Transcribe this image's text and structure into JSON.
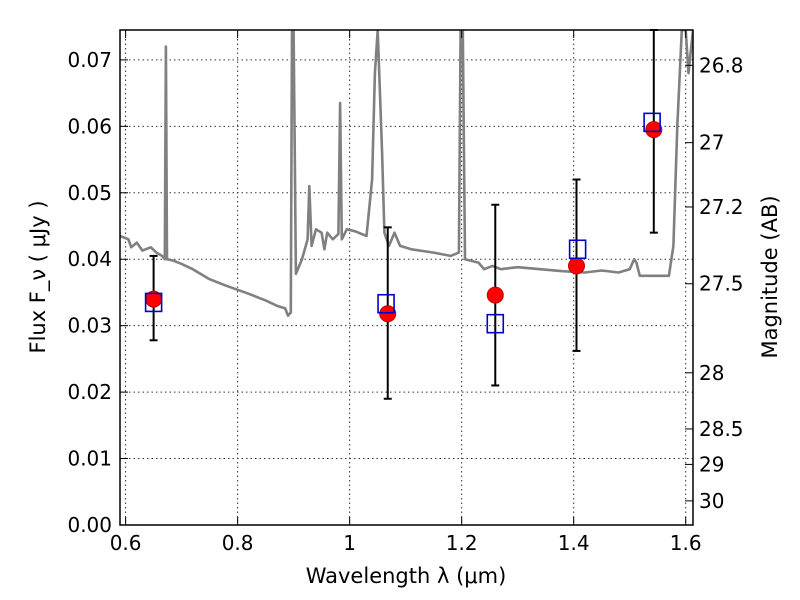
{
  "chart_data": {
    "type": "scatter",
    "xlabel": "Wavelength  λ (μm)",
    "ylabel": "Flux  F_ν  ( μJy )",
    "ylabel_right": "Magnitude (AB)",
    "xlim": [
      0.59,
      1.613
    ],
    "ylim": [
      0.0,
      0.0745
    ],
    "grid": true,
    "x_ticks": [
      0.6,
      0.8,
      1.0,
      1.2,
      1.4,
      1.6
    ],
    "x_tick_labels": [
      "0.6",
      "0.8",
      "1",
      "1.2",
      "1.4",
      "1.6"
    ],
    "y_ticks": [
      0.0,
      0.01,
      0.02,
      0.03,
      0.04,
      0.05,
      0.06,
      0.07
    ],
    "y_tick_labels": [
      "0.00",
      "0.01",
      "0.02",
      "0.03",
      "0.04",
      "0.05",
      "0.06",
      "0.07"
    ],
    "mag_ticks": [
      26.8,
      27,
      27.2,
      27.5,
      28,
      28.5,
      29,
      30
    ],
    "mag_tick_labels": [
      "26.8",
      "27",
      "27.2",
      "27.5",
      "28",
      "28.5",
      "29",
      "30"
    ],
    "colors": {
      "model": "#808080",
      "observed": "#ff0000",
      "observed_edge": "#c00000",
      "synthetic": "#0000cc",
      "errorbar": "#000000",
      "grid": "#333333"
    },
    "series": [
      {
        "name": "observed",
        "marker": "filled-circle",
        "points": [
          {
            "x": 0.65,
            "y": 0.034,
            "ylow": 0.0278,
            "yhigh": 0.0405
          },
          {
            "x": 1.068,
            "y": 0.0318,
            "ylow": 0.019,
            "yhigh": 0.0448
          },
          {
            "x": 1.26,
            "y": 0.0346,
            "ylow": 0.021,
            "yhigh": 0.0482
          },
          {
            "x": 1.405,
            "y": 0.039,
            "ylow": 0.0262,
            "yhigh": 0.052
          },
          {
            "x": 1.543,
            "y": 0.0595,
            "ylow": 0.044,
            "yhigh": 0.0745
          }
        ]
      },
      {
        "name": "model-synthetic",
        "marker": "open-square",
        "points": [
          {
            "x": 0.65,
            "y": 0.0335
          },
          {
            "x": 1.065,
            "y": 0.0333
          },
          {
            "x": 1.26,
            "y": 0.0303
          },
          {
            "x": 1.407,
            "y": 0.0415
          },
          {
            "x": 1.54,
            "y": 0.0606
          }
        ]
      },
      {
        "name": "model-spectrum",
        "type": "line",
        "points": [
          [
            0.59,
            0.0435
          ],
          [
            0.605,
            0.043
          ],
          [
            0.61,
            0.0418
          ],
          [
            0.62,
            0.0425
          ],
          [
            0.63,
            0.0413
          ],
          [
            0.645,
            0.0418
          ],
          [
            0.655,
            0.041
          ],
          [
            0.665,
            0.0405
          ],
          [
            0.67,
            0.04
          ],
          [
            0.672,
            0.072
          ],
          [
            0.674,
            0.04
          ],
          [
            0.685,
            0.0398
          ],
          [
            0.7,
            0.0393
          ],
          [
            0.72,
            0.0385
          ],
          [
            0.75,
            0.037
          ],
          [
            0.78,
            0.036
          ],
          [
            0.82,
            0.0348
          ],
          [
            0.85,
            0.0338
          ],
          [
            0.87,
            0.033
          ],
          [
            0.885,
            0.0326
          ],
          [
            0.89,
            0.0315
          ],
          [
            0.895,
            0.032
          ],
          [
            0.897,
            0.0745
          ],
          [
            0.9,
            0.0745
          ],
          [
            0.904,
            0.0378
          ],
          [
            0.915,
            0.04
          ],
          [
            0.925,
            0.043
          ],
          [
            0.928,
            0.051
          ],
          [
            0.932,
            0.042
          ],
          [
            0.94,
            0.0445
          ],
          [
            0.95,
            0.044
          ],
          [
            0.955,
            0.0415
          ],
          [
            0.96,
            0.044
          ],
          [
            0.97,
            0.043
          ],
          [
            0.98,
            0.0438
          ],
          [
            0.983,
            0.0635
          ],
          [
            0.986,
            0.043
          ],
          [
            0.995,
            0.0445
          ],
          [
            1.01,
            0.0442
          ],
          [
            1.03,
            0.0435
          ],
          [
            1.04,
            0.052
          ],
          [
            1.045,
            0.068
          ],
          [
            1.05,
            0.0745
          ],
          [
            1.058,
            0.056
          ],
          [
            1.062,
            0.044
          ],
          [
            1.07,
            0.042
          ],
          [
            1.08,
            0.044
          ],
          [
            1.09,
            0.042
          ],
          [
            1.11,
            0.0415
          ],
          [
            1.15,
            0.041
          ],
          [
            1.18,
            0.0405
          ],
          [
            1.195,
            0.041
          ],
          [
            1.198,
            0.0745
          ],
          [
            1.202,
            0.0745
          ],
          [
            1.206,
            0.04
          ],
          [
            1.23,
            0.0395
          ],
          [
            1.24,
            0.0385
          ],
          [
            1.255,
            0.039
          ],
          [
            1.27,
            0.0385
          ],
          [
            1.3,
            0.0388
          ],
          [
            1.34,
            0.0385
          ],
          [
            1.38,
            0.0382
          ],
          [
            1.42,
            0.038
          ],
          [
            1.45,
            0.0383
          ],
          [
            1.48,
            0.038
          ],
          [
            1.5,
            0.0385
          ],
          [
            1.508,
            0.04
          ],
          [
            1.512,
            0.0395
          ],
          [
            1.518,
            0.0375
          ],
          [
            1.545,
            0.0375
          ],
          [
            1.57,
            0.0375
          ],
          [
            1.578,
            0.042
          ],
          [
            1.585,
            0.06
          ],
          [
            1.593,
            0.0745
          ],
          [
            1.6,
            0.0745
          ],
          [
            1.605,
            0.068
          ],
          [
            1.613,
            0.0745
          ]
        ]
      }
    ]
  }
}
